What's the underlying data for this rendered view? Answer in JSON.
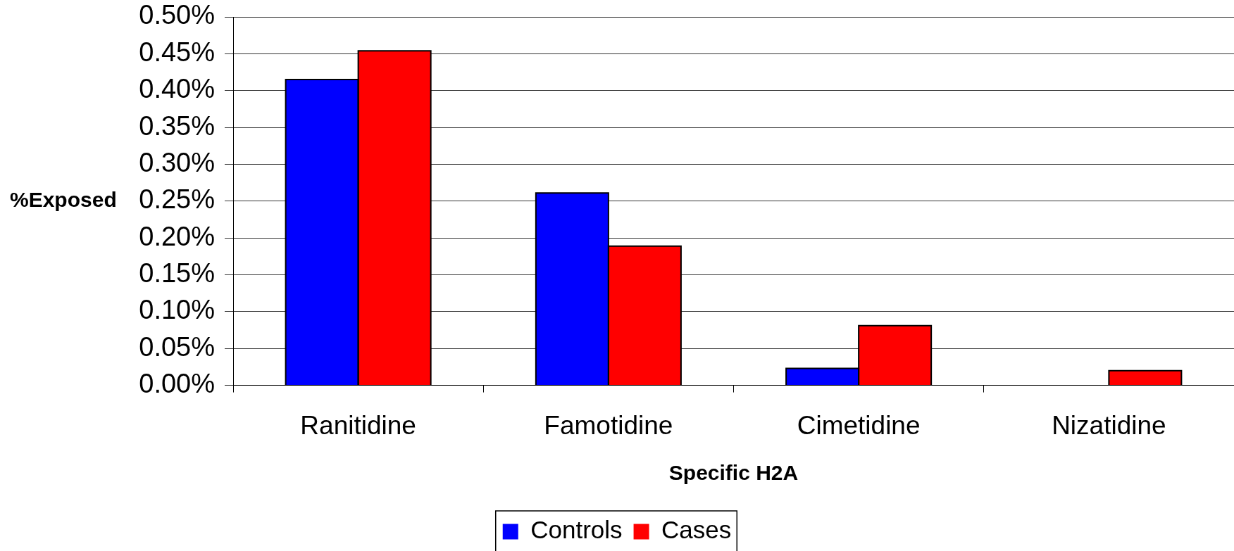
{
  "chart_data": {
    "type": "bar",
    "categories": [
      "Ranitidine",
      "Famotidine",
      "Cimetidine",
      "Nizatidine"
    ],
    "series": [
      {
        "name": "Controls",
        "color": "#0000ff",
        "values": [
          0.415,
          0.261,
          0.023,
          null
        ]
      },
      {
        "name": "Cases",
        "color": "#ff0000",
        "values": [
          0.454,
          0.189,
          0.081,
          0.02
        ]
      }
    ],
    "xlabel": "Specific H2A",
    "ylabel": "%Exposed",
    "ylim": [
      0,
      0.5
    ],
    "yticks": [
      {
        "value": 0,
        "label": "0.00%"
      },
      {
        "value": 0.05,
        "label": "0.05%"
      },
      {
        "value": 0.1,
        "label": "0.10%"
      },
      {
        "value": 0.15,
        "label": "0.15%"
      },
      {
        "value": 0.2,
        "label": "0.20%"
      },
      {
        "value": 0.25,
        "label": "0.25%"
      },
      {
        "value": 0.3,
        "label": "0.30%"
      },
      {
        "value": 0.35,
        "label": "0.35%"
      },
      {
        "value": 0.4,
        "label": "0.40%"
      },
      {
        "value": 0.45,
        "label": "0.45%"
      },
      {
        "value": 0.5,
        "label": "0.50%"
      }
    ],
    "grid": "y",
    "legend": "bottom"
  }
}
